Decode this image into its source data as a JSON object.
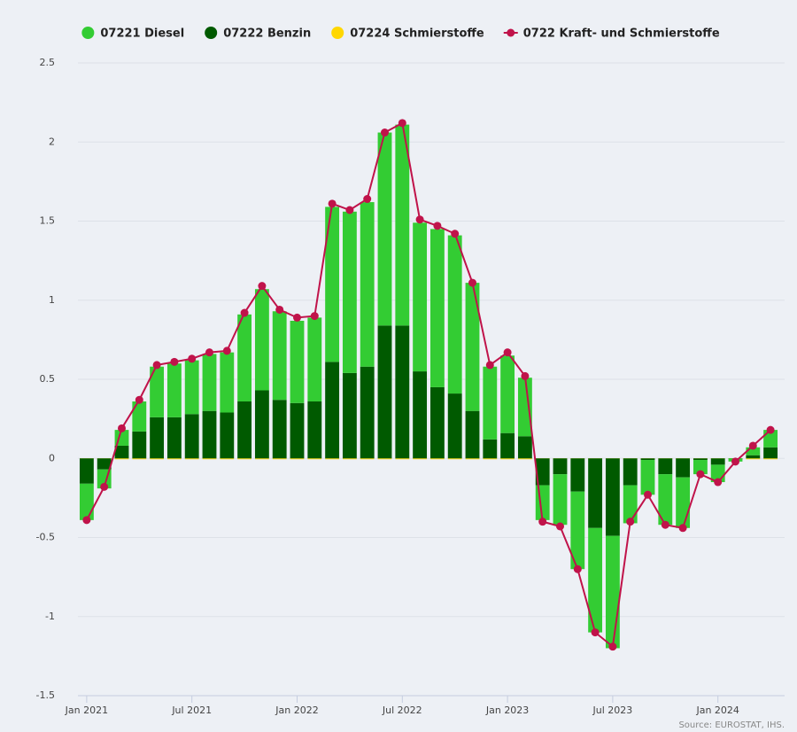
{
  "chart_data": {
    "type": "stacked-bar-line",
    "source": "Source: EUROSTAT, IHS.",
    "categories": [
      "Jan 2021",
      null,
      null,
      null,
      null,
      null,
      "Jul 2021",
      null,
      null,
      null,
      null,
      null,
      "Jan 2022",
      null,
      null,
      null,
      null,
      null,
      "Jul 2022",
      null,
      null,
      null,
      null,
      null,
      "Jan 2023",
      null,
      null,
      null,
      null,
      null,
      "Jul 2023",
      null,
      null,
      null,
      null,
      null,
      "Jan 2024",
      null,
      null,
      null
    ],
    "series": [
      {
        "name": "07221 Diesel",
        "color": "#33cc33",
        "kind": "bar",
        "values": [
          -0.23,
          -0.12,
          0.1,
          0.19,
          0.32,
          0.34,
          0.34,
          0.36,
          0.38,
          0.55,
          0.64,
          0.56,
          0.52,
          0.53,
          0.98,
          1.02,
          1.04,
          1.22,
          1.27,
          0.94,
          1.0,
          1.0,
          0.81,
          0.46,
          0.49,
          0.37,
          -0.22,
          -0.32,
          -0.49,
          -0.66,
          -0.71,
          -0.24,
          -0.22,
          -0.32,
          -0.32,
          -0.09,
          -0.11,
          -0.02,
          0.05,
          0.11
        ]
      },
      {
        "name": "07222 Benzin",
        "color": "#005a00",
        "kind": "bar",
        "values": [
          -0.16,
          -0.07,
          0.08,
          0.17,
          0.26,
          0.26,
          0.28,
          0.3,
          0.29,
          0.36,
          0.43,
          0.37,
          0.35,
          0.36,
          0.61,
          0.54,
          0.58,
          0.84,
          0.84,
          0.55,
          0.45,
          0.41,
          0.3,
          0.12,
          0.16,
          0.14,
          -0.17,
          -0.1,
          -0.21,
          -0.44,
          -0.49,
          -0.17,
          -0.01,
          -0.1,
          -0.12,
          -0.01,
          -0.04,
          0,
          0.02,
          0.07
        ]
      },
      {
        "name": "07224 Schmierstoffe",
        "color": "#ffd700",
        "kind": "bar",
        "values": [
          0,
          0,
          0,
          0,
          0,
          0,
          0,
          0,
          0,
          0,
          0,
          0,
          0,
          0,
          0,
          0,
          0,
          0,
          0,
          0,
          0,
          0,
          0,
          0,
          0,
          0,
          0,
          0,
          0,
          0,
          0,
          0,
          0,
          0,
          0,
          0,
          0,
          0,
          0,
          0
        ]
      },
      {
        "name": "0722 Kraft- und Schmierstoffe",
        "color": "#c0134a",
        "kind": "line",
        "values": [
          -0.39,
          -0.18,
          0.19,
          0.37,
          0.59,
          0.61,
          0.63,
          0.67,
          0.68,
          0.92,
          1.09,
          0.94,
          0.89,
          0.9,
          1.61,
          1.57,
          1.64,
          2.06,
          2.12,
          1.51,
          1.47,
          1.42,
          1.11,
          0.59,
          0.67,
          0.52,
          -0.4,
          -0.43,
          -0.7,
          -1.1,
          -1.19,
          -0.4,
          -0.23,
          -0.42,
          -0.44,
          -0.1,
          -0.15,
          -0.02,
          0.08,
          0.18
        ]
      }
    ],
    "ylim": [
      -1.5,
      2.5
    ],
    "yticks": [
      -1.5,
      -1,
      -0.5,
      0,
      0.5,
      1,
      1.5,
      2,
      2.5
    ],
    "grid": true
  }
}
